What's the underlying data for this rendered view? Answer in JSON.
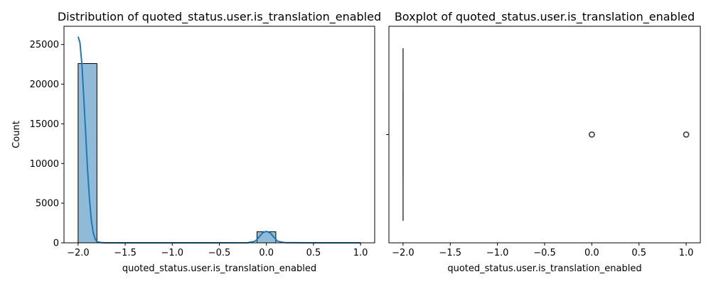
{
  "chart_data": [
    {
      "type": "histogram",
      "title": "Distribution of quoted_status.user.is_translation_enabled",
      "xlabel": "quoted_status.user.is_translation_enabled",
      "ylabel": "Count",
      "xlim": [
        -2.15,
        1.15
      ],
      "ylim": [
        0,
        27300
      ],
      "xticks": [
        -2.0,
        -1.5,
        -1.0,
        -0.5,
        0.0,
        0.5,
        1.0
      ],
      "xtick_labels": [
        "−2.0",
        "−1.5",
        "−1.0",
        "−0.5",
        "0.0",
        "0.5",
        "1.0"
      ],
      "yticks": [
        0,
        5000,
        10000,
        15000,
        20000,
        25000
      ],
      "ytick_labels": [
        "0",
        "5000",
        "10000",
        "15000",
        "20000",
        "25000"
      ],
      "bars": [
        {
          "x0": -2.0,
          "x1": -1.8,
          "count": 22600
        },
        {
          "x0": -0.1,
          "x1": 0.1,
          "count": 1400
        }
      ],
      "kde": {
        "x": [
          -2.0,
          -1.98,
          -1.96,
          -1.94,
          -1.92,
          -1.9,
          -1.88,
          -1.86,
          -1.84,
          -1.82,
          -1.8,
          -1.75,
          -1.7,
          -1.5,
          -1.0,
          -0.5,
          -0.2,
          -0.12,
          -0.08,
          -0.04,
          0.0,
          0.04,
          0.08,
          0.12,
          0.2,
          0.5,
          1.0
        ],
        "y": [
          26000,
          25200,
          22500,
          18400,
          13800,
          9300,
          5600,
          2900,
          1300,
          500,
          150,
          20,
          0,
          0,
          0,
          0,
          5,
          200,
          700,
          1250,
          1450,
          1250,
          700,
          200,
          20,
          0,
          0
        ]
      },
      "bar_color": "#1f77b4",
      "bar_fill_opacity": 0.5,
      "line_color": "#1f77b4"
    },
    {
      "type": "boxplot",
      "title": "Boxplot of quoted_status.user.is_translation_enabled",
      "xlabel": "quoted_status.user.is_translation_enabled",
      "xlim": [
        -2.15,
        1.15
      ],
      "xticks": [
        -2.0,
        -1.5,
        -1.0,
        -0.5,
        0.0,
        0.5,
        1.0
      ],
      "xtick_labels": [
        "−2.0",
        "−1.5",
        "−1.0",
        "−0.5",
        "0.0",
        "0.5",
        "1.0"
      ],
      "box": {
        "q1": -2.0,
        "median": -2.0,
        "q3": -2.0,
        "whisker_low": -2.0,
        "whisker_high": -2.0
      },
      "outliers": [
        0.0,
        1.0
      ],
      "color": "#3d3d3d"
    }
  ]
}
